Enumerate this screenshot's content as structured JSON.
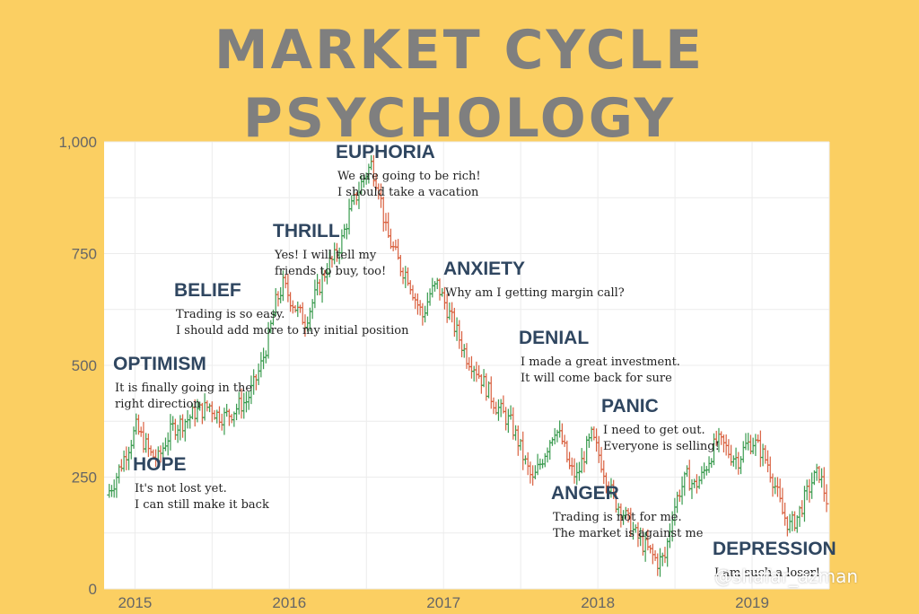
{
  "title": "MARKET CYCLE PSYCHOLOGY",
  "watermark": "@shafar_azman",
  "colors": {
    "background": "#fbcf62",
    "title": "#7f7f7f",
    "up": "#3a9b4f",
    "down": "#d9603f",
    "stage_heading": "#2f4660",
    "stage_text": "#222222"
  },
  "chart_data": {
    "type": "candlestick",
    "xlim": [
      2014.8,
      2019.5
    ],
    "ylim": [
      0,
      1000
    ],
    "x_ticks": [
      "2015",
      "2016",
      "2017",
      "2018",
      "2019"
    ],
    "x_tick_values": [
      2015,
      2016,
      2017,
      2018,
      2019
    ],
    "y_ticks": [
      "0",
      "250",
      "500",
      "750",
      "1,000"
    ],
    "y_tick_values": [
      0,
      250,
      500,
      750,
      1000
    ],
    "grid": true,
    "price_path": [
      210,
      240,
      280,
      320,
      360,
      330,
      300,
      290,
      330,
      360,
      370,
      380,
      395,
      400,
      410,
      390,
      385,
      395,
      410,
      420,
      455,
      500,
      560,
      640,
      680,
      650,
      620,
      600,
      640,
      680,
      720,
      740,
      780,
      840,
      880,
      920,
      950,
      900,
      800,
      760,
      720,
      700,
      650,
      610,
      660,
      680,
      640,
      600,
      560,
      520,
      500,
      470,
      440,
      410,
      390,
      370,
      330,
      280,
      240,
      280,
      320,
      360,
      330,
      270,
      250,
      300,
      340,
      300,
      250,
      200,
      180,
      150,
      120,
      100,
      80,
      60,
      70,
      170,
      220,
      250,
      230,
      250,
      290,
      330,
      320,
      300,
      290,
      320,
      330,
      310,
      280,
      230,
      170,
      140,
      160,
      200,
      240,
      260,
      200
    ],
    "stages": [
      {
        "name": "HOPE",
        "lines": [
          "It's not lost yet.",
          "I can still make it back"
        ]
      },
      {
        "name": "OPTIMISM",
        "lines": [
          "It is finally going in the",
          "right direction"
        ]
      },
      {
        "name": "BELIEF",
        "lines": [
          "Trading is so easy.",
          "I should add more to my initial position"
        ]
      },
      {
        "name": "THRILL",
        "lines": [
          "Yes! I will tell my",
          "friends to buy, too!"
        ]
      },
      {
        "name": "EUPHORIA",
        "lines": [
          "We are going to be rich!",
          "I should take a vacation"
        ]
      },
      {
        "name": "ANXIETY",
        "lines": [
          "Why am I getting margin call?"
        ]
      },
      {
        "name": "DENIAL",
        "lines": [
          "I made a great investment.",
          "It will come back for sure"
        ]
      },
      {
        "name": "PANIC",
        "lines": [
          "I need to get out.",
          "Everyone is selling!"
        ]
      },
      {
        "name": "ANGER",
        "lines": [
          "Trading is not for me.",
          "The market is against me"
        ]
      },
      {
        "name": "DEPRESSION",
        "lines": [
          "I am such a loser!"
        ]
      }
    ]
  }
}
